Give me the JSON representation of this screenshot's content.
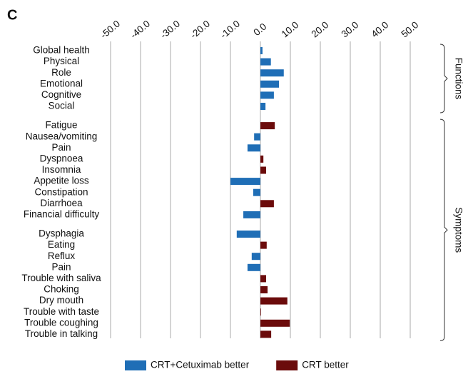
{
  "chart_data": {
    "type": "hbar",
    "panel_label": "C",
    "categories": [
      "Global health",
      "Physical",
      "Role",
      "Emotional",
      "Cognitive",
      "Social",
      null,
      "Fatigue",
      "Nausea/vomiting",
      "Pain",
      "Dyspnoea",
      "Insomnia",
      "Appetite loss",
      "Constipation",
      "Diarrhoea",
      "Financial difficulty",
      null,
      "Dysphagia",
      "Eating",
      "Reflux",
      "Pain",
      "Trouble with saliva",
      "Choking",
      "Dry mouth",
      "Trouble with taste",
      "Trouble coughing",
      "Trouble in talking"
    ],
    "series": [
      {
        "name": "CRT+Cetuximab better",
        "color": "#1f6eb6",
        "values": [
          0.7,
          3.5,
          7.8,
          6.2,
          4.5,
          1.7,
          null,
          null,
          -2.1,
          -4.3,
          null,
          null,
          -10,
          -2.4,
          null,
          -5.7,
          null,
          -7.9,
          null,
          -2.9,
          -4.3,
          null,
          null,
          null,
          null,
          null,
          null
        ]
      },
      {
        "name": "CRT better",
        "color": "#6b0b0b",
        "values": [
          null,
          null,
          null,
          null,
          null,
          null,
          null,
          4.8,
          null,
          null,
          1.0,
          1.9,
          null,
          null,
          4.5,
          null,
          null,
          null,
          2.1,
          null,
          null,
          1.9,
          2.4,
          9.0,
          0.2,
          9.8,
          3.6
        ]
      }
    ],
    "groups": [
      "Functions",
      "Symptoms"
    ],
    "xlim": [
      -50,
      50
    ],
    "xticks": [
      {
        "value": -50,
        "label": "-50.0"
      },
      {
        "value": -40,
        "label": "-40.0"
      },
      {
        "value": -30,
        "label": "-30.0"
      },
      {
        "value": -20,
        "label": "-20.0"
      },
      {
        "value": -10,
        "label": "-10.0"
      },
      {
        "value": 0,
        "label": "0.0"
      },
      {
        "value": 10,
        "label": "10.0"
      },
      {
        "value": 20,
        "label": "20.0"
      },
      {
        "value": 30,
        "label": "30.0"
      },
      {
        "value": 40,
        "label": "40.0"
      },
      {
        "value": 50,
        "label": "50.0"
      }
    ],
    "grid": true
  }
}
